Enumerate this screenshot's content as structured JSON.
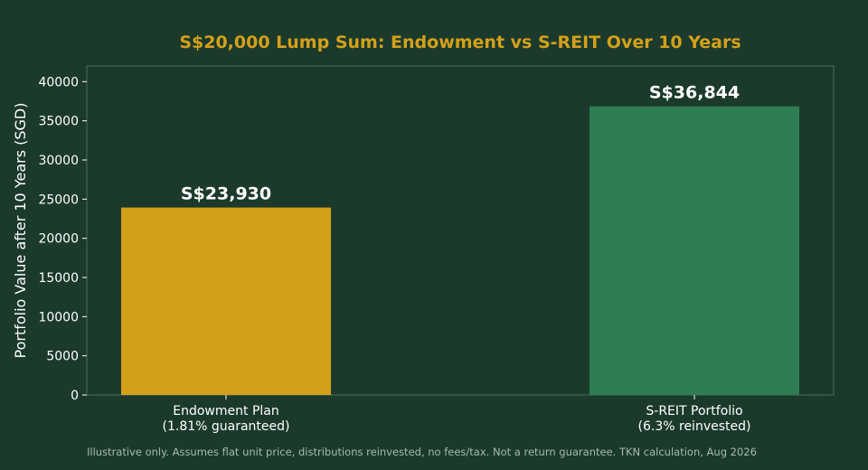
{
  "colors": {
    "background": "#1b3a2b",
    "title": "#d4a01a",
    "text": "#ffffff",
    "footnote": "#a9b8ad",
    "frame": "#4f6b5a"
  },
  "chart_data": {
    "type": "bar",
    "title": "S$20,000 Lump Sum: Endowment vs S-REIT Over 10 Years",
    "xlabel": "",
    "ylabel": "Portfolio Value after 10 Years (SGD)",
    "ylim": [
      0,
      42000
    ],
    "yticks": [
      0,
      5000,
      10000,
      15000,
      20000,
      25000,
      30000,
      35000,
      40000
    ],
    "grid": false,
    "legend": "none",
    "categories": [
      [
        "Endowment Plan",
        "(1.81% guaranteed)"
      ],
      [
        "S-REIT Portfolio",
        "(6.3% reinvested)"
      ]
    ],
    "values": [
      23930,
      36844
    ],
    "value_labels": [
      "S$23,930",
      "S$36,844"
    ],
    "bar_colors": [
      "#d4a01a",
      "#2e7d53"
    ]
  },
  "footnote": "Illustrative only. Assumes flat unit price, distributions reinvested, no fees/tax. Not a return guarantee. TKN calculation, Aug 2026"
}
